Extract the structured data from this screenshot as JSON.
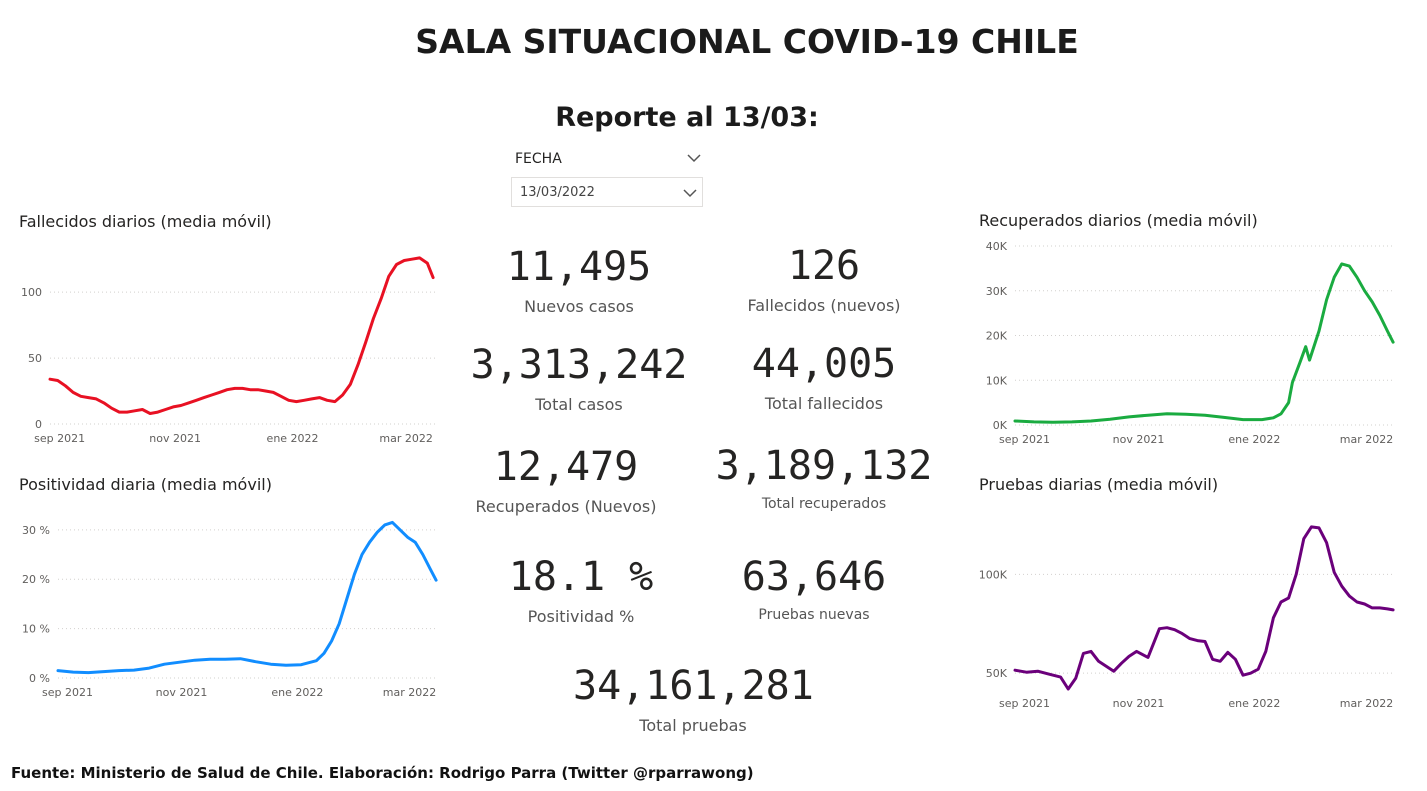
{
  "header": {
    "title": "SALA SITUACIONAL COVID-19 CHILE",
    "subtitle": "Reporte al 13/03:"
  },
  "slicer": {
    "label": "FECHA",
    "value": "13/03/2022",
    "label_icon": "chevron-down-icon",
    "value_icon": "chevron-down-icon"
  },
  "kpis": [
    {
      "value": "11,495",
      "label": "Nuevos casos"
    },
    {
      "value": "126",
      "label": "Fallecidos (nuevos)"
    },
    {
      "value": "3,313,242",
      "label": "Total casos"
    },
    {
      "value": "44,005",
      "label": "Total fallecidos"
    },
    {
      "value": "12,479",
      "label": "Recuperados (Nuevos)"
    },
    {
      "value": "3,189,132",
      "label": "Total recuperados"
    },
    {
      "value": "18.1 %",
      "label": "Positividad %"
    },
    {
      "value": "63,646",
      "label": "Pruebas nuevas"
    },
    {
      "value": "34,161,281",
      "label": "Total pruebas"
    }
  ],
  "footer": "Fuente: Ministerio de Salud de Chile. Elaboración: Rodrigo Parra (Twitter @rparrawong)",
  "chart_data": [
    {
      "id": "fallecidos",
      "type": "line",
      "title": "Fallecidos diarios (media móvil)",
      "color": "#e81123",
      "xlim": [
        0,
        200
      ],
      "xticks": [
        {
          "x": 5,
          "label": "sep 2021"
        },
        {
          "x": 65,
          "label": "nov 2021"
        },
        {
          "x": 126,
          "label": "ene 2022"
        },
        {
          "x": 185,
          "label": "mar 2022"
        }
      ],
      "ylim": [
        0,
        135
      ],
      "yticks": [
        {
          "v": 0,
          "label": "0"
        },
        {
          "v": 50,
          "label": "50"
        },
        {
          "v": 100,
          "label": "100"
        }
      ],
      "grid": true,
      "x": [
        0,
        4,
        8,
        12,
        16,
        20,
        24,
        28,
        32,
        36,
        40,
        44,
        48,
        52,
        56,
        60,
        64,
        68,
        72,
        76,
        80,
        84,
        88,
        92,
        96,
        100,
        104,
        108,
        112,
        116,
        120,
        124,
        128,
        132,
        136,
        140,
        144,
        148,
        152,
        156,
        160,
        164,
        168,
        172,
        176,
        180,
        184,
        188,
        192,
        196,
        199
      ],
      "y": [
        34,
        33,
        29,
        24,
        21,
        20,
        19,
        16,
        12,
        9,
        9,
        10,
        11,
        8,
        9,
        11,
        13,
        14,
        16,
        18,
        20,
        22,
        24,
        26,
        27,
        27,
        26,
        26,
        25,
        24,
        21,
        18,
        17,
        18,
        19,
        20,
        18,
        17,
        22,
        30,
        45,
        62,
        80,
        95,
        112,
        121,
        124,
        125,
        126,
        122,
        111
      ]
    },
    {
      "id": "positividad",
      "type": "line",
      "title": "Positividad diaria (media móvil)",
      "color": "#118dff",
      "xlim": [
        0,
        200
      ],
      "xticks": [
        {
          "x": 5,
          "label": "sep 2021"
        },
        {
          "x": 65,
          "label": "nov 2021"
        },
        {
          "x": 126,
          "label": "ene 2022"
        },
        {
          "x": 185,
          "label": "mar 2022"
        }
      ],
      "ylim": [
        0,
        33
      ],
      "yticks": [
        {
          "v": 0,
          "label": "0 %"
        },
        {
          "v": 10,
          "label": "10 %"
        },
        {
          "v": 20,
          "label": "20 %"
        },
        {
          "v": 30,
          "label": "30 %"
        }
      ],
      "grid": true,
      "x": [
        0,
        8,
        16,
        24,
        32,
        40,
        48,
        56,
        64,
        72,
        80,
        88,
        96,
        104,
        112,
        120,
        128,
        136,
        140,
        144,
        148,
        152,
        156,
        160,
        164,
        168,
        172,
        176,
        180,
        184,
        188,
        192,
        196,
        199
      ],
      "y": [
        1.5,
        1.2,
        1.1,
        1.3,
        1.5,
        1.6,
        2.0,
        2.8,
        3.2,
        3.6,
        3.8,
        3.8,
        3.9,
        3.3,
        2.8,
        2.6,
        2.7,
        3.5,
        5.0,
        7.5,
        11,
        16,
        21,
        25,
        27.5,
        29.5,
        31,
        31.5,
        30,
        28.5,
        27.5,
        25,
        22,
        19.8
      ]
    },
    {
      "id": "recuperados",
      "type": "line",
      "title": "Recuperados diarios (media móvil)",
      "color": "#1aab40",
      "xlim": [
        0,
        200
      ],
      "xticks": [
        {
          "x": 5,
          "label": "sep 2021"
        },
        {
          "x": 65,
          "label": "nov 2021"
        },
        {
          "x": 126,
          "label": "ene 2022"
        },
        {
          "x": 185,
          "label": "mar 2022"
        }
      ],
      "ylim": [
        0,
        40000
      ],
      "yticks": [
        {
          "v": 0,
          "label": "0K"
        },
        {
          "v": 10000,
          "label": "10K"
        },
        {
          "v": 20000,
          "label": "20K"
        },
        {
          "v": 30000,
          "label": "30K"
        },
        {
          "v": 40000,
          "label": "40K"
        }
      ],
      "grid": true,
      "x": [
        0,
        10,
        20,
        30,
        40,
        50,
        60,
        70,
        80,
        90,
        100,
        110,
        120,
        130,
        136,
        140,
        144,
        146,
        150,
        153,
        155,
        160,
        164,
        168,
        172,
        176,
        180,
        184,
        188,
        192,
        196,
        199
      ],
      "y": [
        900,
        700,
        600,
        700,
        900,
        1300,
        1800,
        2200,
        2500,
        2400,
        2200,
        1700,
        1200,
        1200,
        1600,
        2500,
        5000,
        9500,
        14000,
        17500,
        14500,
        21000,
        28000,
        33000,
        36000,
        35500,
        33000,
        30000,
        27500,
        24500,
        21000,
        18500
      ]
    },
    {
      "id": "pruebas",
      "type": "line",
      "title": "Pruebas diarias (media móvil)",
      "color": "#6b007b",
      "xlim": [
        0,
        200
      ],
      "xticks": [
        {
          "x": 5,
          "label": "sep 2021"
        },
        {
          "x": 65,
          "label": "nov 2021"
        },
        {
          "x": 126,
          "label": "ene 2022"
        },
        {
          "x": 185,
          "label": "mar 2022"
        }
      ],
      "ylim": [
        42000,
        130000
      ],
      "yticks": [
        {
          "v": 50000,
          "label": "50K"
        },
        {
          "v": 100000,
          "label": "100K"
        }
      ],
      "grid": true,
      "x": [
        0,
        6,
        12,
        18,
        24,
        28,
        32,
        36,
        40,
        44,
        48,
        52,
        56,
        60,
        64,
        70,
        76,
        80,
        84,
        88,
        92,
        96,
        100,
        104,
        108,
        112,
        116,
        120,
        124,
        128,
        132,
        136,
        140,
        144,
        148,
        152,
        156,
        160,
        164,
        168,
        172,
        176,
        180,
        184,
        188,
        192,
        196,
        199
      ],
      "y": [
        51500,
        50500,
        51000,
        49500,
        48000,
        42000,
        47500,
        60000,
        61000,
        56000,
        53500,
        51000,
        55000,
        58500,
        61000,
        58000,
        72500,
        73000,
        72000,
        70000,
        67500,
        66500,
        66000,
        57000,
        56000,
        60500,
        57000,
        49000,
        50000,
        52000,
        61000,
        78000,
        86000,
        88000,
        100000,
        118000,
        124000,
        123500,
        116000,
        101000,
        94000,
        89000,
        86000,
        85000,
        83000,
        83000,
        82500,
        82000
      ]
    }
  ]
}
